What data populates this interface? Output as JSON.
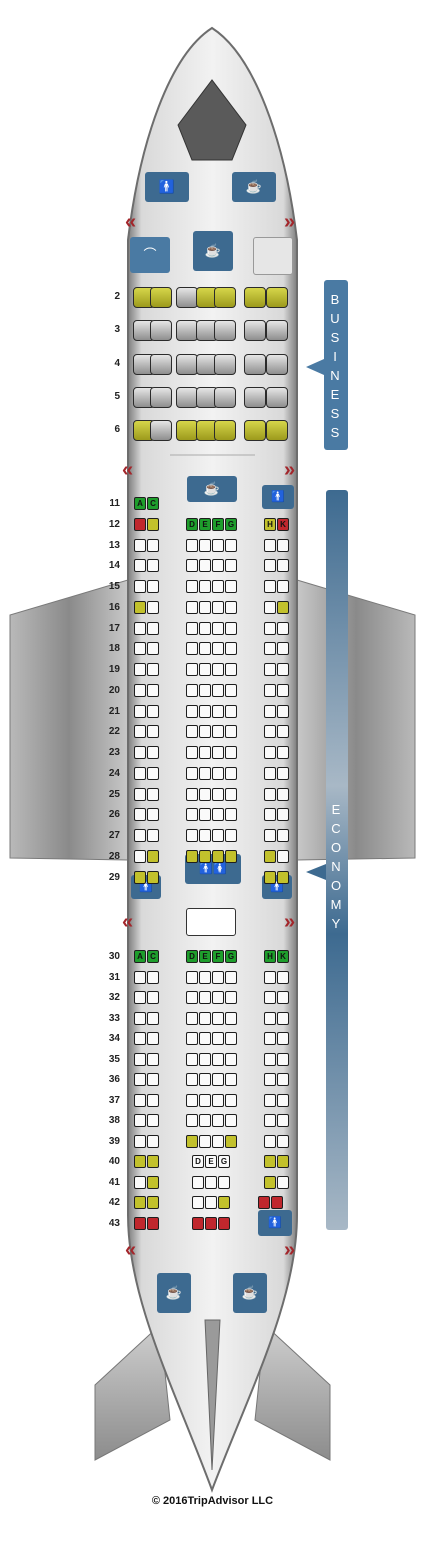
{
  "cabin_labels": {
    "business": "BUSINESS",
    "economy": "ECONOMY"
  },
  "copyright": "© 2016TripAdvisor LLC",
  "colors": {
    "standard_seat": "#fafafa",
    "good_seat": "#c2c12c",
    "bad_seat": "#c0272d",
    "bulkhead_seat": "#1e9e2c",
    "facility": "#3d6a90"
  },
  "icons": {
    "galley": "coffee-cup-icon",
    "lavatory": "man-woman-icon",
    "exit": "exit-chevron-icon",
    "closet": "hanger-icon"
  },
  "business_rows": [
    {
      "row": "2",
      "seats": [
        "y",
        "y",
        "g",
        "y",
        "y",
        "y",
        "y"
      ]
    },
    {
      "row": "3",
      "seats": [
        "g",
        "g",
        "g",
        "g",
        "g",
        "g",
        "g"
      ]
    },
    {
      "row": "4",
      "seats": [
        "g",
        "g",
        "g",
        "g",
        "g",
        "g",
        "g"
      ]
    },
    {
      "row": "5",
      "seats": [
        "g",
        "g",
        "g",
        "g",
        "g",
        "g",
        "g"
      ]
    },
    {
      "row": "6",
      "seats": [
        "y",
        "g",
        "y",
        "y",
        "y",
        "y",
        "y"
      ]
    }
  ],
  "economy_rows": [
    {
      "row": "11",
      "left": [
        "bulk",
        "bulk"
      ],
      "center": [],
      "right": []
    },
    {
      "row": "12",
      "left": [
        "bad",
        "good"
      ],
      "center": [
        "bulk",
        "bulk",
        "bulk",
        "bulk"
      ],
      "right": [
        "good",
        "bad"
      ]
    },
    {
      "row": "13",
      "left": [
        "std",
        "std"
      ],
      "center": [
        "std",
        "std",
        "std",
        "std"
      ],
      "right": [
        "std",
        "std"
      ]
    },
    {
      "row": "14",
      "left": [
        "std",
        "std"
      ],
      "center": [
        "std",
        "std",
        "std",
        "std"
      ],
      "right": [
        "std",
        "std"
      ]
    },
    {
      "row": "15",
      "left": [
        "std",
        "std"
      ],
      "center": [
        "std",
        "std",
        "std",
        "std"
      ],
      "right": [
        "std",
        "std"
      ]
    },
    {
      "row": "16",
      "left": [
        "good",
        "std"
      ],
      "center": [
        "std",
        "std",
        "std",
        "std"
      ],
      "right": [
        "std",
        "good"
      ]
    },
    {
      "row": "17",
      "left": [
        "std",
        "std"
      ],
      "center": [
        "std",
        "std",
        "std",
        "std"
      ],
      "right": [
        "std",
        "std"
      ]
    },
    {
      "row": "18",
      "left": [
        "std",
        "std"
      ],
      "center": [
        "std",
        "std",
        "std",
        "std"
      ],
      "right": [
        "std",
        "std"
      ]
    },
    {
      "row": "19",
      "left": [
        "std",
        "std"
      ],
      "center": [
        "std",
        "std",
        "std",
        "std"
      ],
      "right": [
        "std",
        "std"
      ]
    },
    {
      "row": "20",
      "left": [
        "std",
        "std"
      ],
      "center": [
        "std",
        "std",
        "std",
        "std"
      ],
      "right": [
        "std",
        "std"
      ]
    },
    {
      "row": "21",
      "left": [
        "std",
        "std"
      ],
      "center": [
        "std",
        "std",
        "std",
        "std"
      ],
      "right": [
        "std",
        "std"
      ]
    },
    {
      "row": "22",
      "left": [
        "std",
        "std"
      ],
      "center": [
        "std",
        "std",
        "std",
        "std"
      ],
      "right": [
        "std",
        "std"
      ]
    },
    {
      "row": "23",
      "left": [
        "std",
        "std"
      ],
      "center": [
        "std",
        "std",
        "std",
        "std"
      ],
      "right": [
        "std",
        "std"
      ]
    },
    {
      "row": "24",
      "left": [
        "std",
        "std"
      ],
      "center": [
        "std",
        "std",
        "std",
        "std"
      ],
      "right": [
        "std",
        "std"
      ]
    },
    {
      "row": "25",
      "left": [
        "std",
        "std"
      ],
      "center": [
        "std",
        "std",
        "std",
        "std"
      ],
      "right": [
        "std",
        "std"
      ]
    },
    {
      "row": "26",
      "left": [
        "std",
        "std"
      ],
      "center": [
        "std",
        "std",
        "std",
        "std"
      ],
      "right": [
        "std",
        "std"
      ]
    },
    {
      "row": "27",
      "left": [
        "std",
        "std"
      ],
      "center": [
        "std",
        "std",
        "std",
        "std"
      ],
      "right": [
        "std",
        "std"
      ]
    },
    {
      "row": "28",
      "left": [
        "std",
        "good"
      ],
      "center": [
        "good",
        "good",
        "good",
        "good"
      ],
      "right": [
        "good",
        "std"
      ]
    },
    {
      "row": "29",
      "left": [
        "good",
        "good"
      ],
      "center": [],
      "right": [
        "good",
        "good"
      ]
    },
    {
      "row": "30",
      "left": [
        "bulk",
        "bulk"
      ],
      "center": [
        "bulk",
        "bulk",
        "bulk",
        "bulk"
      ],
      "right": [
        "bulk",
        "bulk"
      ]
    },
    {
      "row": "31",
      "left": [
        "std",
        "std"
      ],
      "center": [
        "std",
        "std",
        "std",
        "std"
      ],
      "right": [
        "std",
        "std"
      ]
    },
    {
      "row": "32",
      "left": [
        "std",
        "std"
      ],
      "center": [
        "std",
        "std",
        "std",
        "std"
      ],
      "right": [
        "std",
        "std"
      ]
    },
    {
      "row": "33",
      "left": [
        "std",
        "std"
      ],
      "center": [
        "std",
        "std",
        "std",
        "std"
      ],
      "right": [
        "std",
        "std"
      ]
    },
    {
      "row": "34",
      "left": [
        "std",
        "std"
      ],
      "center": [
        "std",
        "std",
        "std",
        "std"
      ],
      "right": [
        "std",
        "std"
      ]
    },
    {
      "row": "35",
      "left": [
        "std",
        "std"
      ],
      "center": [
        "std",
        "std",
        "std",
        "std"
      ],
      "right": [
        "std",
        "std"
      ]
    },
    {
      "row": "36",
      "left": [
        "std",
        "std"
      ],
      "center": [
        "std",
        "std",
        "std",
        "std"
      ],
      "right": [
        "std",
        "std"
      ]
    },
    {
      "row": "37",
      "left": [
        "std",
        "std"
      ],
      "center": [
        "std",
        "std",
        "std",
        "std"
      ],
      "right": [
        "std",
        "std"
      ]
    },
    {
      "row": "38",
      "left": [
        "std",
        "std"
      ],
      "center": [
        "std",
        "std",
        "std",
        "std"
      ],
      "right": [
        "std",
        "std"
      ]
    },
    {
      "row": "39",
      "left": [
        "std",
        "std"
      ],
      "center": [
        "good",
        "std",
        "std",
        "good"
      ],
      "right": [
        "std",
        "std"
      ]
    },
    {
      "row": "40",
      "left": [
        "good",
        "good"
      ],
      "center": [
        "std",
        "std",
        "std"
      ],
      "right": [
        "good",
        "good"
      ]
    },
    {
      "row": "41",
      "left": [
        "std",
        "good"
      ],
      "center": [
        "std",
        "std",
        "std"
      ],
      "right": [
        "good",
        "std"
      ]
    },
    {
      "row": "42",
      "left": [
        "good",
        "good"
      ],
      "center": [
        "std",
        "std",
        "good"
      ],
      "right": [
        "bad",
        "bad"
      ]
    },
    {
      "row": "43",
      "left": [
        "bad",
        "bad"
      ],
      "center": [
        "bad",
        "bad",
        "bad"
      ],
      "right": []
    }
  ],
  "letters": {
    "row11_left": [
      "A",
      "C"
    ],
    "row12_center": [
      "D",
      "E",
      "F",
      "G"
    ],
    "row12_right": [
      "H",
      "K"
    ],
    "row30_left": [
      "A",
      "C"
    ],
    "row30_center": [
      "D",
      "E",
      "F",
      "G"
    ],
    "row30_right": [
      "H",
      "K"
    ],
    "row40_center": [
      "D",
      "E",
      "G"
    ]
  }
}
